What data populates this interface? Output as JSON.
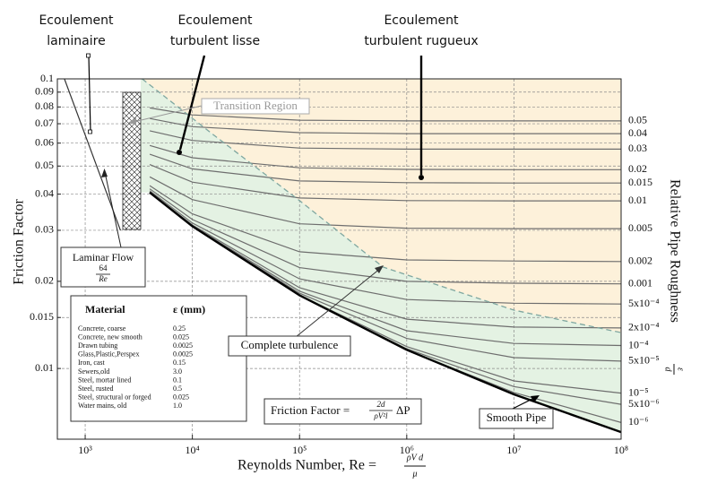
{
  "chart_data": {
    "type": "line",
    "xscale": "log",
    "yscale": "log",
    "grid": true,
    "xlim": [
      550,
      100000000
    ],
    "ylim": [
      0.0057,
      0.1
    ],
    "xticks": [
      {
        "value": 1000,
        "label": "10³"
      },
      {
        "value": 10000,
        "label": "10⁴"
      },
      {
        "value": 100000,
        "label": "10⁵"
      },
      {
        "value": 1000000,
        "label": "10⁶"
      },
      {
        "value": 10000000,
        "label": "10⁷"
      },
      {
        "value": 100000000,
        "label": "10⁸"
      }
    ],
    "yticks": [
      0.1,
      0.09,
      0.08,
      0.07,
      0.06,
      0.05,
      0.04,
      0.03,
      0.02,
      0.015,
      0.01
    ],
    "x_label": {
      "text": "Reynolds Number, Re =",
      "num": "ρV d",
      "den": "μ"
    },
    "y_label": "Friction Factor",
    "y2_label": {
      "text": "Relative Pipe Roughness",
      "num": "ε",
      "den": "d"
    },
    "x": [
      4000,
      10000,
      100000,
      1000000,
      10000000,
      100000000
    ],
    "series": [
      {
        "name": "0.05",
        "color": "#6e6e6e",
        "values": [
          0.0794,
          0.0751,
          0.072,
          0.0716,
          0.0716,
          0.0716
        ]
      },
      {
        "name": "0.04",
        "color": "#6e6e6e",
        "values": [
          0.073,
          0.0684,
          0.0652,
          0.0647,
          0.0647,
          0.0647
        ]
      },
      {
        "name": "0.03",
        "color": "#6e6e6e",
        "values": [
          0.0662,
          0.0613,
          0.0577,
          0.0572,
          0.0572,
          0.0572
        ]
      },
      {
        "name": "0.02",
        "color": "#6e6e6e",
        "values": [
          0.0589,
          0.0534,
          0.0493,
          0.0487,
          0.0486,
          0.0486
        ]
      },
      {
        "name": "0.015",
        "color": "#6e6e6e",
        "values": [
          0.0549,
          0.0489,
          0.0444,
          0.0438,
          0.0437,
          0.0437
        ]
      },
      {
        "name": "0.01",
        "color": "#6e6e6e",
        "values": [
          0.0506,
          0.044,
          0.0388,
          0.038,
          0.0379,
          0.0379
        ]
      },
      {
        "name": "0.005",
        "color": "#6e6e6e",
        "values": [
          0.0459,
          0.0383,
          0.0316,
          0.0305,
          0.0304,
          0.0304
        ]
      },
      {
        "name": "0.002",
        "color": "#6e6e6e",
        "values": [
          0.0428,
          0.0342,
          0.0253,
          0.0237,
          0.0235,
          0.0234
        ]
      },
      {
        "name": "0.001",
        "color": "#6e6e6e",
        "values": [
          0.0417,
          0.0327,
          0.0223,
          0.02,
          0.0197,
          0.0196
        ]
      },
      {
        "name": "5x10⁻⁴",
        "color": "#6e6e6e",
        "values": [
          0.0411,
          0.0318,
          0.0204,
          0.0173,
          0.0168,
          0.0167
        ]
      },
      {
        "name": "2x10⁻⁴",
        "color": "#6e6e6e",
        "values": [
          0.0407,
          0.0313,
          0.019,
          0.0148,
          0.0139,
          0.0138
        ]
      },
      {
        "name": "10⁻⁴",
        "color": "#6e6e6e",
        "values": [
          0.0406,
          0.0311,
          0.0185,
          0.0135,
          0.0122,
          0.012
        ]
      },
      {
        "name": "5x10⁻⁵",
        "color": "#6e6e6e",
        "values": [
          0.0406,
          0.031,
          0.0182,
          0.0127,
          0.0109,
          0.0106
        ]
      },
      {
        "name": "10⁻⁵",
        "color": "#6e6e6e",
        "values": [
          0.0405,
          0.031,
          0.0179,
          0.0119,
          0.00906,
          0.00822
        ]
      },
      {
        "name": "5x10⁻⁶",
        "color": "#6e6e6e",
        "values": [
          0.0405,
          0.031,
          0.0179,
          0.0117,
          0.00866,
          0.00752
        ]
      },
      {
        "name": "10⁻⁶",
        "color": "#6e6e6e",
        "values": [
          0.0405,
          0.031,
          0.0179,
          0.0116,
          0.00826,
          0.00651
        ]
      }
    ],
    "smooth": {
      "label": "Smooth Pipe",
      "color": "#000000",
      "values": [
        0.0405,
        0.031,
        0.0179,
        0.0116,
        0.00814,
        0.00603
      ]
    },
    "laminar": {
      "label": "Laminar Flow",
      "num": "64",
      "den": "Re",
      "color": "#333333",
      "x": [
        640,
        2133
      ],
      "values": [
        0.1,
        0.03
      ]
    },
    "boundary": {
      "label": "Complete turbulence",
      "color": "#7fa7a0",
      "x": [
        3400,
        15000,
        100000,
        600000,
        10000000,
        100000000
      ],
      "values": [
        0.1,
        0.065,
        0.038,
        0.0224,
        0.0159,
        0.0133
      ]
    },
    "transition_label": "Transition Region",
    "friction_formula": {
      "lhs": "Friction Factor =",
      "num": "2d",
      "den": "ρV²l",
      "rhs": "ΔP"
    },
    "annotations": [
      {
        "lines": [
          "Ecoulement",
          "laminaire"
        ]
      },
      {
        "lines": [
          "Ecoulement",
          "turbulent lisse"
        ]
      },
      {
        "lines": [
          "Ecoulement",
          "turbulent rugueux"
        ]
      }
    ],
    "material_table": {
      "headers": [
        "Material",
        "ε (mm)"
      ],
      "rows": [
        [
          "Concrete, coarse",
          "0.25"
        ],
        [
          "Concrete, new smooth",
          "0.025"
        ],
        [
          "Drawn tubing",
          "0.0025"
        ],
        [
          "Glass,Plastic,Perspex",
          "0.0025"
        ],
        [
          "Iron, cast",
          "0.15"
        ],
        [
          "Sewers,old",
          "3.0"
        ],
        [
          "Steel, mortar lined",
          "0.1"
        ],
        [
          "Steel, rusted",
          "0.5"
        ],
        [
          "Steel, structural or forged",
          "0.025"
        ],
        [
          "Water mains, old",
          "1.0"
        ]
      ]
    }
  }
}
